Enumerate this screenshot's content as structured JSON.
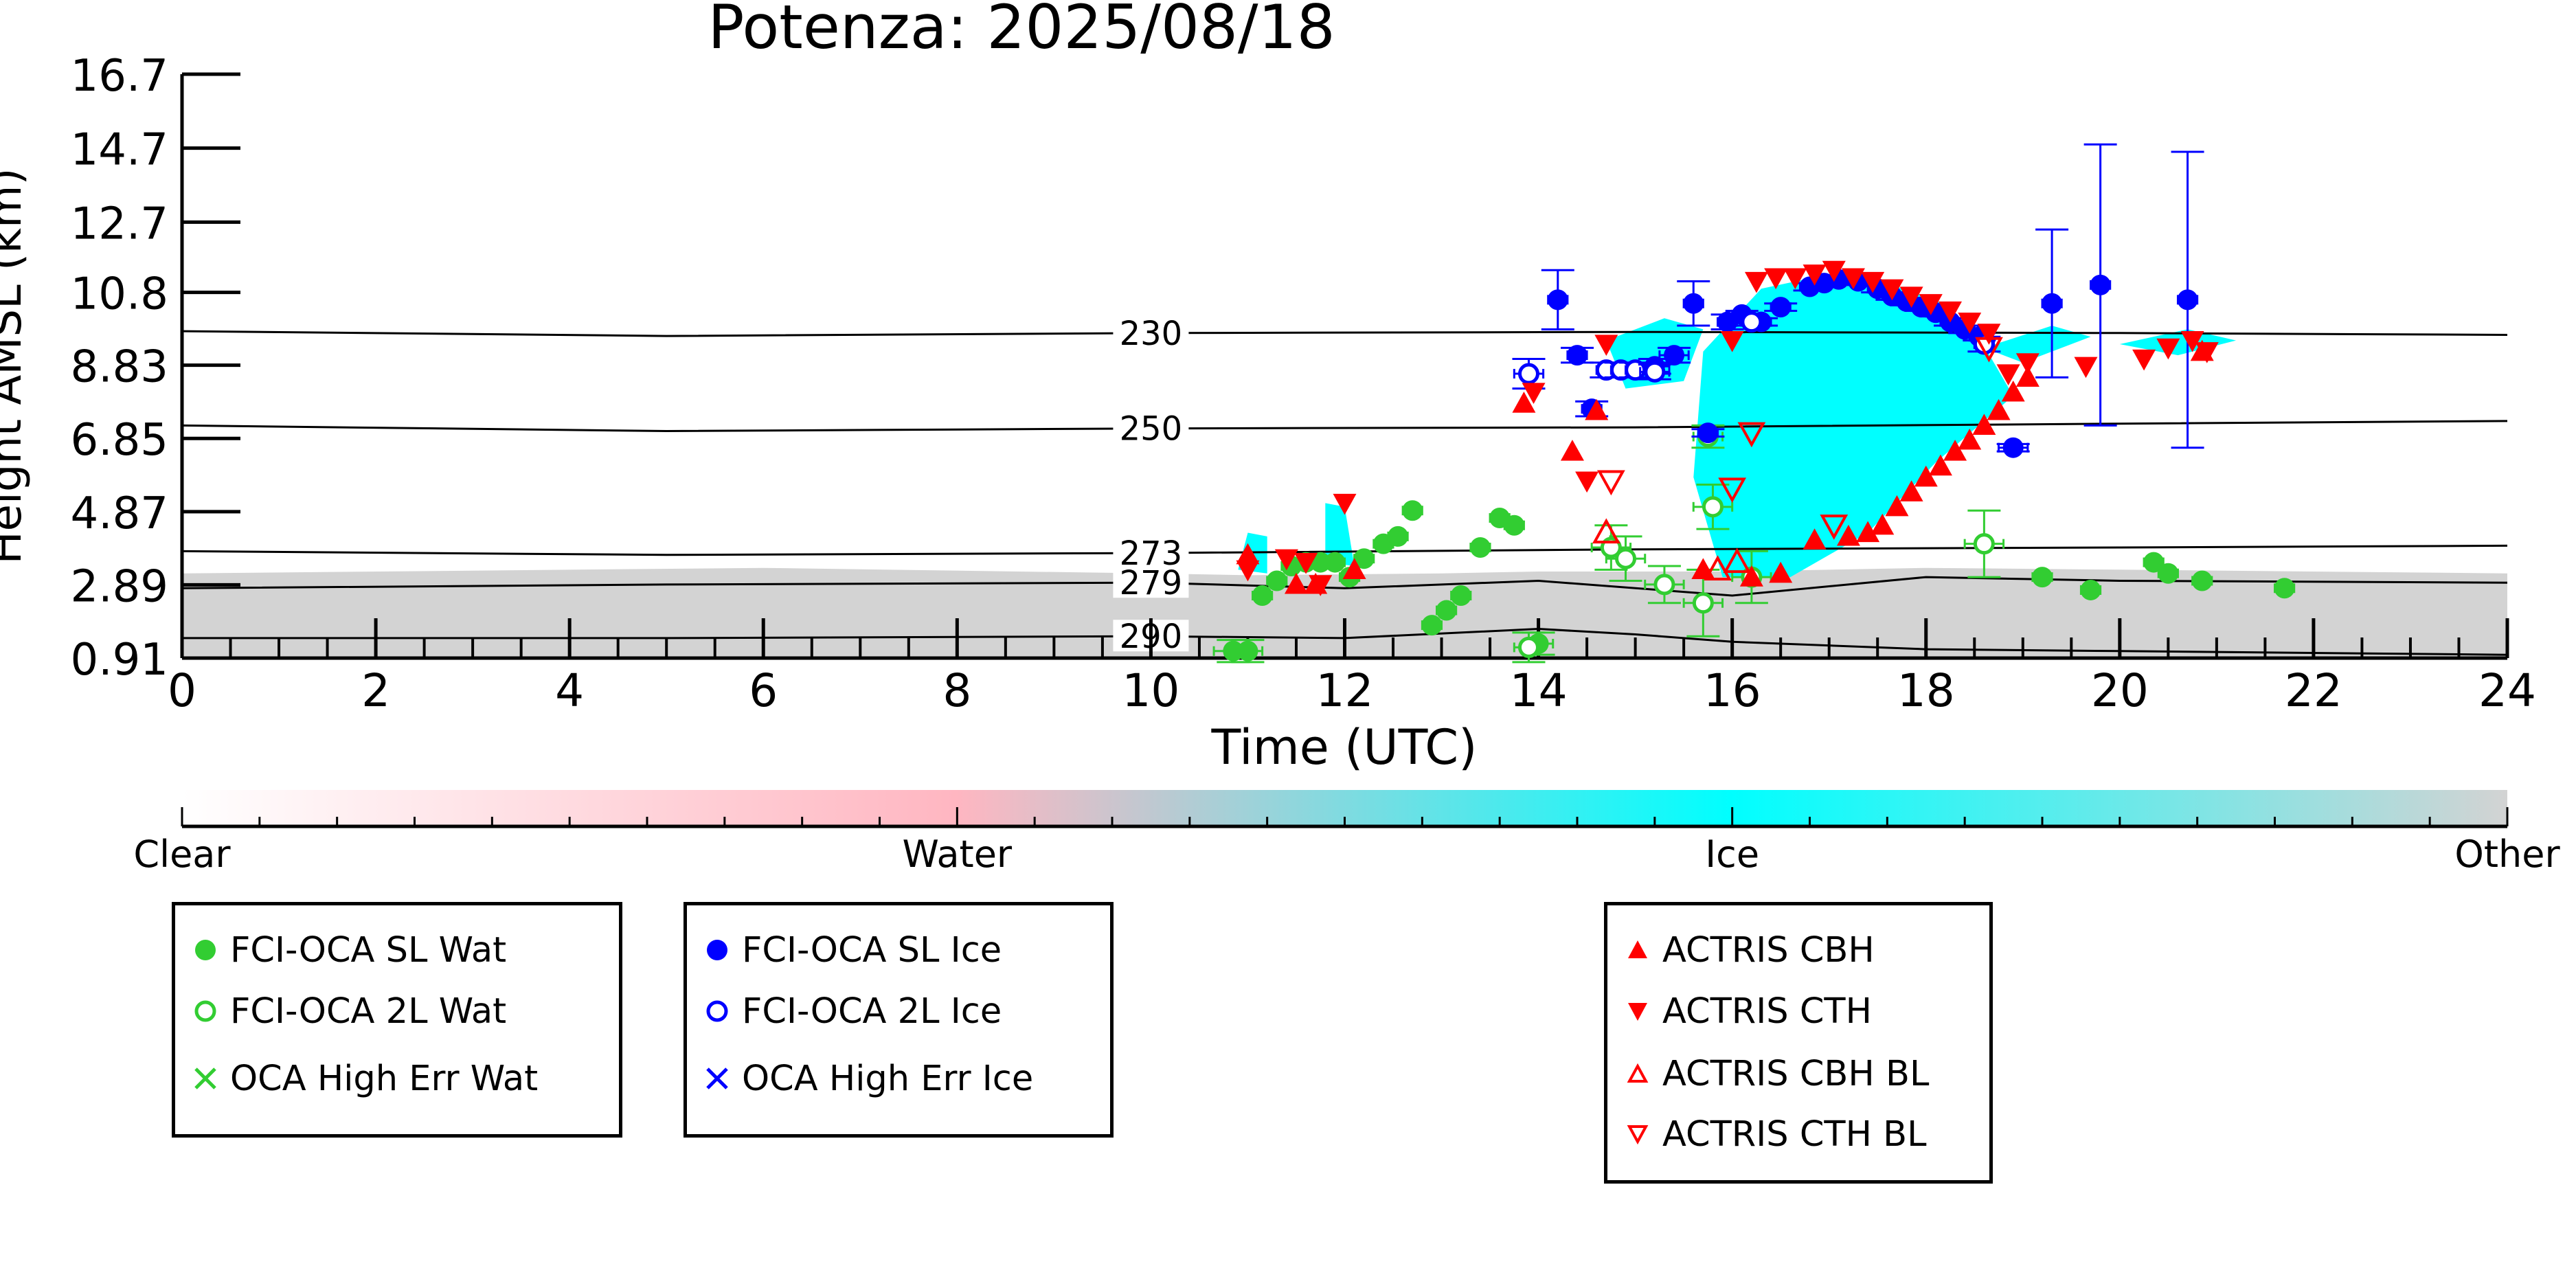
{
  "chart_data": {
    "type": "scatter",
    "title": "Potenza: 2025/08/18",
    "xlabel": "Time (UTC)",
    "ylabel": "Height AMSL (km)",
    "xlim": [
      0,
      24
    ],
    "ylim": [
      0.91,
      16.7
    ],
    "x_ticks": [
      "0",
      "2",
      "4",
      "6",
      "8",
      "10",
      "12",
      "14",
      "16",
      "18",
      "20",
      "22",
      "24"
    ],
    "y_ticks": [
      "0.91",
      "2.89",
      "4.87",
      "6.85",
      "8.83",
      "10.8",
      "12.7",
      "14.7",
      "16.7"
    ],
    "y_tick_values": [
      0.91,
      2.89,
      4.87,
      6.85,
      8.83,
      10.8,
      12.7,
      14.7,
      16.7
    ],
    "colorbar": {
      "labels": [
        "Clear",
        "Water",
        "Ice",
        "Other"
      ],
      "colors": [
        "#ffffff",
        "#ffb6c1",
        "#00ffff",
        "#d3d3d3"
      ]
    },
    "temperature_contours": [
      {
        "label": "230",
        "points": [
          [
            0,
            9.75
          ],
          [
            5,
            9.62
          ],
          [
            10,
            9.7
          ],
          [
            15,
            9.73
          ],
          [
            20,
            9.7
          ],
          [
            24,
            9.65
          ]
        ]
      },
      {
        "label": "250",
        "points": [
          [
            0,
            7.2
          ],
          [
            5,
            7.05
          ],
          [
            10,
            7.12
          ],
          [
            15,
            7.15
          ],
          [
            20,
            7.25
          ],
          [
            24,
            7.32
          ]
        ]
      },
      {
        "label": "273",
        "points": [
          [
            0,
            3.8
          ],
          [
            5,
            3.7
          ],
          [
            10,
            3.75
          ],
          [
            15,
            3.85
          ],
          [
            20,
            3.9
          ],
          [
            24,
            3.95
          ]
        ]
      },
      {
        "label": "279",
        "points": [
          [
            0,
            2.8
          ],
          [
            5,
            2.9
          ],
          [
            10,
            2.95
          ],
          [
            12,
            2.8
          ],
          [
            14,
            3.0
          ],
          [
            16,
            2.6
          ],
          [
            18,
            3.1
          ],
          [
            20,
            3.0
          ],
          [
            24,
            2.95
          ]
        ]
      },
      {
        "label": "290",
        "points": [
          [
            0,
            1.45
          ],
          [
            5,
            1.45
          ],
          [
            10,
            1.5
          ],
          [
            12,
            1.45
          ],
          [
            14,
            1.7
          ],
          [
            15,
            1.55
          ],
          [
            16,
            1.35
          ],
          [
            18,
            1.15
          ],
          [
            20,
            1.1
          ],
          [
            24,
            1.0
          ]
        ]
      }
    ],
    "other_layer_top_km": [
      [
        0,
        3.2
      ],
      [
        6,
        3.35
      ],
      [
        10,
        3.2
      ],
      [
        11,
        3.15
      ],
      [
        13,
        3.2
      ],
      [
        14,
        3.25
      ],
      [
        16,
        3.25
      ],
      [
        18,
        3.35
      ],
      [
        20,
        3.3
      ],
      [
        24,
        3.2
      ]
    ],
    "ice_regions": [
      {
        "points": [
          [
            15.7,
            9.2
          ],
          [
            16.3,
            10.9
          ],
          [
            17.2,
            11.4
          ],
          [
            18.1,
            10.6
          ],
          [
            18.5,
            9.8
          ],
          [
            18.9,
            8.0
          ],
          [
            18.1,
            6.2
          ],
          [
            17.4,
            4.3
          ],
          [
            16.6,
            3.1
          ],
          [
            15.9,
            3.1
          ],
          [
            15.6,
            5.8
          ]
        ]
      },
      {
        "points": [
          [
            14.7,
            9.5
          ],
          [
            15.3,
            10.1
          ],
          [
            15.7,
            9.8
          ],
          [
            15.5,
            8.4
          ],
          [
            14.9,
            8.2
          ]
        ]
      },
      {
        "points": [
          [
            18.6,
            9.3
          ],
          [
            19.3,
            9.9
          ],
          [
            19.7,
            9.6
          ],
          [
            19.0,
            8.9
          ]
        ]
      },
      {
        "points": [
          [
            20.0,
            9.4
          ],
          [
            20.7,
            9.8
          ],
          [
            21.2,
            9.5
          ],
          [
            20.6,
            9.1
          ]
        ]
      },
      {
        "points": [
          [
            11.0,
            4.3
          ],
          [
            11.2,
            4.2
          ],
          [
            11.2,
            3.2
          ],
          [
            10.9,
            3.3
          ]
        ]
      },
      {
        "points": [
          [
            11.8,
            5.1
          ],
          [
            12.0,
            5.0
          ],
          [
            12.1,
            3.4
          ],
          [
            11.8,
            3.5
          ]
        ]
      }
    ],
    "series": [
      {
        "name": "FCI-OCA SL Wat",
        "marker": "circle-filled",
        "color": "#32cd32",
        "x": [
          10.85,
          11.0,
          11.15,
          11.3,
          11.45,
          11.6,
          11.75,
          11.9,
          12.05,
          12.2,
          12.4,
          12.55,
          12.7,
          12.9,
          13.05,
          13.2,
          13.4,
          13.6,
          13.75,
          14.0,
          19.2,
          19.7,
          20.35,
          20.5,
          20.85,
          21.7
        ],
        "y": [
          1.1,
          1.1,
          2.6,
          3.0,
          3.4,
          3.5,
          3.5,
          3.5,
          3.1,
          3.6,
          4.0,
          4.2,
          4.9,
          1.8,
          2.2,
          2.6,
          3.9,
          4.7,
          4.5,
          1.3,
          3.1,
          2.75,
          3.5,
          3.2,
          3.0,
          2.8
        ],
        "xerr": [
          0.2,
          0.15,
          0.1,
          0.1,
          0.1,
          0.1,
          0.1,
          0.1,
          0.1,
          0.1,
          0.1,
          0.1,
          0.1,
          0.1,
          0.1,
          0.1,
          0.1,
          0.1,
          0.1,
          0.15,
          0.1,
          0.1,
          0.1,
          0.1,
          0.1,
          0.1
        ],
        "yerr": [
          0.3,
          0.3,
          0,
          0,
          0,
          0,
          0,
          0,
          0,
          0,
          0,
          0,
          0,
          0,
          0,
          0,
          0,
          0,
          0,
          0.3,
          0,
          0,
          0,
          0,
          0,
          0
        ]
      },
      {
        "name": "FCI-OCA 2L Wat",
        "marker": "circle-open",
        "color": "#32cd32",
        "x": [
          13.9,
          14.75,
          14.9,
          15.3,
          15.7,
          15.75,
          15.8,
          16.2,
          18.6
        ],
        "y": [
          1.2,
          3.9,
          3.6,
          2.9,
          2.4,
          6.9,
          5.0,
          3.1,
          4.0
        ],
        "xerr": [
          0.15,
          0.2,
          0.2,
          0.2,
          0.2,
          0.15,
          0.2,
          0.2,
          0.2
        ],
        "yerr": [
          0.4,
          0.6,
          0.6,
          0.5,
          0.9,
          0.3,
          0.6,
          0.7,
          0.9
        ]
      },
      {
        "name": "OCA High Err Wat",
        "marker": "x",
        "color": "#32cd32",
        "x": [],
        "y": []
      },
      {
        "name": "FCI-OCA SL Ice",
        "marker": "circle-filled",
        "color": "#0000ff",
        "x": [
          14.2,
          14.4,
          14.55,
          15.2,
          15.4,
          15.6,
          15.75,
          15.95,
          16.1,
          16.3,
          16.5,
          16.8,
          16.95,
          17.1,
          17.3,
          17.5,
          17.65,
          17.8,
          17.95,
          18.1,
          18.25,
          18.4,
          18.55,
          18.9,
          19.3,
          19.8,
          20.7
        ],
        "y": [
          10.6,
          9.1,
          7.65,
          8.8,
          9.1,
          10.5,
          7.0,
          10.0,
          10.2,
          10.0,
          10.4,
          10.95,
          11.05,
          11.15,
          11.1,
          10.9,
          10.7,
          10.55,
          10.4,
          10.25,
          10.0,
          9.8,
          9.6,
          6.6,
          10.5,
          11.0,
          10.6
        ],
        "xerr": [
          0.1,
          0.1,
          0.1,
          0.15,
          0.15,
          0.1,
          0.1,
          0.1,
          0.1,
          0.1,
          0.1,
          0.1,
          0.1,
          0.1,
          0.1,
          0.1,
          0.1,
          0.1,
          0.1,
          0.1,
          0.1,
          0.1,
          0.1,
          0.15,
          0.1,
          0.1,
          0.1
        ],
        "yerr": [
          0.8,
          0.2,
          0.2,
          0.2,
          0.2,
          0.6,
          0.1,
          0.2,
          0.1,
          0.1,
          0.1,
          0.1,
          0.1,
          0.1,
          0.1,
          0.1,
          0.1,
          0.1,
          0.1,
          0.1,
          0.1,
          0.1,
          0.1,
          0.1,
          2.0,
          3.8,
          4.0
        ]
      },
      {
        "name": "FCI-OCA 2L Ice",
        "marker": "circle-open",
        "color": "#0000ff",
        "x": [
          13.9,
          14.7,
          14.85,
          15.0,
          15.2,
          16.2,
          18.6
        ],
        "y": [
          8.6,
          8.7,
          8.7,
          8.7,
          8.65,
          10.0,
          9.4
        ],
        "xerr": [
          0.15,
          0.1,
          0.1,
          0.1,
          0.15,
          0.1,
          0.1
        ],
        "yerr": [
          0.4,
          0.2,
          0.2,
          0.2,
          0.2,
          0.1,
          0.2
        ]
      },
      {
        "name": "OCA High Err Ice",
        "marker": "x",
        "color": "#0000ff",
        "x": [],
        "y": []
      },
      {
        "name": "ACTRIS CBH",
        "marker": "triangle-up-filled",
        "color": "#ff0000",
        "x": [
          11.0,
          11.5,
          11.7,
          12.1,
          13.85,
          14.35,
          14.6,
          15.7,
          16.2,
          16.5,
          16.85,
          17.2,
          17.4,
          17.55,
          17.7,
          17.85,
          18.0,
          18.15,
          18.3,
          18.45,
          18.6,
          18.75,
          18.9,
          19.05,
          20.85
        ],
        "y": [
          3.7,
          2.9,
          2.9,
          3.3,
          7.8,
          6.5,
          7.6,
          3.3,
          3.1,
          3.2,
          4.1,
          4.2,
          4.3,
          4.5,
          5.0,
          5.4,
          5.8,
          6.1,
          6.5,
          6.8,
          7.2,
          7.6,
          8.1,
          8.5,
          9.2
        ],
        "xerr": [],
        "yerr": []
      },
      {
        "name": "ACTRIS CTH",
        "marker": "triangle-down-filled",
        "color": "#ff0000",
        "x": [
          11.0,
          11.4,
          11.6,
          11.75,
          12.0,
          13.95,
          14.5,
          14.7,
          16.0,
          16.25,
          16.45,
          16.65,
          16.85,
          17.05,
          17.25,
          17.45,
          17.65,
          17.85,
          18.05,
          18.25,
          18.45,
          18.65,
          18.85,
          19.05,
          19.65,
          20.25,
          20.5,
          20.75,
          20.9
        ],
        "y": [
          3.3,
          3.6,
          3.5,
          2.9,
          5.1,
          8.1,
          5.7,
          9.4,
          9.5,
          11.1,
          11.2,
          11.2,
          11.3,
          11.4,
          11.2,
          11.1,
          10.9,
          10.7,
          10.5,
          10.3,
          10.0,
          9.7,
          8.6,
          8.9,
          8.8,
          9.0,
          9.3,
          9.5,
          9.2
        ],
        "xerr": [],
        "yerr": []
      },
      {
        "name": "ACTRIS CBH BL",
        "marker": "triangle-up-open",
        "color": "#ff0000",
        "x": [
          14.7,
          15.85,
          16.05
        ],
        "y": [
          4.3,
          3.3,
          3.5
        ],
        "xerr": [],
        "yerr": []
      },
      {
        "name": "ACTRIS CTH BL",
        "marker": "triangle-down-open",
        "color": "#ff0000",
        "x": [
          14.75,
          16.0,
          16.2,
          17.05,
          18.65
        ],
        "y": [
          5.7,
          5.5,
          7.0,
          4.5,
          9.3
        ],
        "xerr": [],
        "yerr": []
      }
    ],
    "legend": {
      "groups": [
        [
          "FCI-OCA SL Wat",
          "FCI-OCA 2L Wat",
          "OCA High Err Wat"
        ],
        [
          "FCI-OCA SL Ice",
          "FCI-OCA 2L Ice",
          "OCA High Err Ice"
        ],
        [
          "ACTRIS CBH",
          "ACTRIS CTH",
          "ACTRIS CBH BL",
          "ACTRIS CTH BL"
        ]
      ],
      "placement": "below"
    },
    "grid": false
  }
}
